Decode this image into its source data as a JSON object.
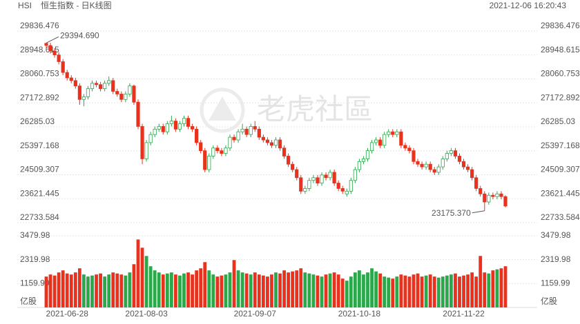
{
  "chart_data": {
    "type": "candlestick",
    "symbol": "HSI",
    "title": "恒生指数 - 日K线图",
    "timestamp": "2021-12-06 16:20:43",
    "watermark": "老虎社區",
    "up_color": "#2aa84a",
    "down_color": "#e8321e",
    "ylim": [
      22733.584,
      29836.476
    ],
    "yticks": [
      22733.584,
      23621.445,
      24509.307,
      25397.168,
      26285.03,
      27172.892,
      28060.753,
      28948.615,
      29836.476
    ],
    "volume_unit": "亿股",
    "volume_ylim": [
      0,
      3479.98
    ],
    "volume_ticks": [
      1159.99,
      2319.98,
      3479.98
    ],
    "annotations": [
      {
        "label": "29394.690",
        "index": 0
      },
      {
        "label": "23175.370",
        "index": 105
      }
    ],
    "categories": [
      null,
      null,
      null,
      null,
      null,
      "2021-06-28",
      null,
      null,
      null,
      null,
      null,
      null,
      null,
      null,
      null,
      null,
      null,
      null,
      null,
      null,
      null,
      null,
      null,
      null,
      "2021-08-03",
      null,
      null,
      null,
      null,
      null,
      null,
      null,
      null,
      null,
      null,
      null,
      null,
      null,
      null,
      null,
      null,
      null,
      null,
      null,
      null,
      null,
      null,
      null,
      null,
      null,
      "2021-09-07",
      null,
      null,
      null,
      null,
      null,
      null,
      null,
      null,
      null,
      null,
      null,
      null,
      null,
      null,
      null,
      null,
      null,
      null,
      null,
      null,
      null,
      null,
      null,
      null,
      "2021-10-18",
      null,
      null,
      null,
      null,
      null,
      null,
      null,
      null,
      null,
      null,
      null,
      null,
      null,
      null,
      null,
      null,
      null,
      null,
      null,
      null,
      null,
      null,
      null,
      null,
      "2021-11-22",
      null,
      null,
      null,
      null,
      null,
      null,
      null,
      null,
      null,
      null
    ],
    "open": [
      29380,
      29300,
      29100,
      28950,
      28700,
      28300,
      28100,
      28000,
      27800,
      27300,
      27400,
      27700,
      27900,
      27850,
      27700,
      27900,
      28000,
      27600,
      27500,
      27300,
      27500,
      27800,
      27200,
      26300,
      25100,
      25700,
      26000,
      26200,
      26300,
      26100,
      26400,
      26500,
      26200,
      26400,
      26600,
      26300,
      26200,
      25700,
      25400,
      24700,
      25200,
      25500,
      25400,
      25300,
      25500,
      25900,
      25800,
      26100,
      26200,
      26000,
      26300,
      26200,
      25900,
      25800,
      25700,
      25600,
      25800,
      25500,
      25200,
      24900,
      24700,
      24400,
      23900,
      24000,
      24300,
      24400,
      24200,
      24500,
      24400,
      24600,
      24200,
      24000,
      23800,
      23900,
      24300,
      24700,
      25000,
      25100,
      25400,
      25700,
      25800,
      25600,
      26000,
      26100,
      26000,
      26100,
      25600,
      25500,
      25400,
      25000,
      24900,
      24800,
      24900,
      24700,
      24600,
      24800,
      25100,
      25300,
      25400,
      25200,
      25000,
      24800,
      24700,
      24400,
      24000,
      23800,
      23500,
      23750,
      23700,
      23800,
      23700
    ],
    "high": [
      29394.69,
      29400,
      29200,
      29050,
      28800,
      28400,
      28200,
      28100,
      27900,
      27500,
      27800,
      28000,
      28000,
      27950,
      28000,
      28150,
      28100,
      27700,
      27600,
      27600,
      27900,
      27850,
      27300,
      26400,
      25800,
      26100,
      26300,
      26400,
      26400,
      26500,
      26700,
      26600,
      26500,
      26700,
      26700,
      26400,
      26300,
      25800,
      25500,
      25300,
      25600,
      25600,
      25500,
      25600,
      26000,
      26000,
      26200,
      26400,
      26300,
      26400,
      26500,
      26300,
      26000,
      25900,
      25800,
      25900,
      25900,
      25600,
      25300,
      25000,
      24800,
      24500,
      24100,
      24400,
      24500,
      24500,
      24600,
      24600,
      24700,
      24700,
      24300,
      24100,
      24000,
      24400,
      24800,
      25100,
      25200,
      25500,
      25800,
      25900,
      25900,
      26100,
      26200,
      26200,
      26200,
      26200,
      25700,
      25600,
      25500,
      25100,
      25000,
      25000,
      25000,
      24800,
      24900,
      25200,
      25400,
      25500,
      25500,
      25300,
      25100,
      24900,
      24800,
      24500,
      24100,
      23900,
      23850,
      23850,
      23900,
      23900,
      23750
    ],
    "low": [
      29200,
      29000,
      28850,
      28600,
      28200,
      28000,
      27900,
      27700,
      27100,
      27050,
      27300,
      27600,
      27750,
      27600,
      27600,
      27800,
      27500,
      27400,
      27200,
      27200,
      27400,
      27100,
      26200,
      24900,
      25000,
      25600,
      25900,
      26100,
      26000,
      26000,
      26300,
      26100,
      26100,
      26300,
      26200,
      26100,
      25600,
      25300,
      24600,
      24600,
      25100,
      25300,
      25200,
      25200,
      25400,
      25700,
      25700,
      26000,
      25900,
      25900,
      26100,
      25800,
      25700,
      25600,
      25500,
      25500,
      25400,
      25100,
      24800,
      24600,
      24300,
      23800,
      23800,
      23900,
      24200,
      24100,
      24100,
      24300,
      24300,
      24100,
      23900,
      23800,
      23700,
      23800,
      24200,
      24600,
      24900,
      25000,
      25300,
      25600,
      25500,
      25500,
      25900,
      25900,
      25900,
      25500,
      25400,
      25300,
      24900,
      24800,
      24700,
      24700,
      24600,
      24500,
      24500,
      24700,
      25000,
      25200,
      25100,
      24900,
      24700,
      24600,
      24300,
      23900,
      23700,
      23175.37,
      23400,
      23600,
      23600,
      23600,
      23300
    ],
    "close": [
      29300,
      29100,
      28950,
      28700,
      28300,
      28100,
      28000,
      27800,
      27300,
      27400,
      27700,
      27900,
      27850,
      27700,
      27900,
      28000,
      27600,
      27500,
      27300,
      27500,
      27800,
      27200,
      26300,
      25100,
      25700,
      26000,
      26200,
      26300,
      26100,
      26400,
      26500,
      26200,
      26400,
      26600,
      26300,
      26200,
      25700,
      25400,
      24700,
      25200,
      25500,
      25400,
      25300,
      25500,
      25900,
      25800,
      26100,
      26200,
      26000,
      26300,
      26200,
      25900,
      25800,
      25700,
      25600,
      25800,
      25500,
      25200,
      24900,
      24700,
      24400,
      23900,
      24000,
      24300,
      24400,
      24200,
      24500,
      24400,
      24600,
      24200,
      24000,
      23900,
      23900,
      24300,
      24700,
      25000,
      25100,
      25400,
      25700,
      25800,
      25600,
      26000,
      26100,
      26000,
      26100,
      25600,
      25500,
      25400,
      25000,
      24900,
      24800,
      24900,
      24700,
      24600,
      24800,
      25100,
      25300,
      25400,
      25200,
      25000,
      24800,
      24700,
      24400,
      24000,
      23800,
      23500,
      23750,
      23700,
      23800,
      23700,
      23350
    ],
    "volume": [
      1500,
      1600,
      1550,
      1700,
      1800,
      1650,
      1600,
      1700,
      1900,
      1600,
      1500,
      1550,
      1600,
      1650,
      1500,
      1600,
      1700,
      1650,
      1600,
      1550,
      1700,
      2100,
      3300,
      2900,
      2500,
      2000,
      1800,
      1700,
      1600,
      1650,
      1700,
      1600,
      1550,
      1650,
      1700,
      1600,
      1800,
      1900,
      2200,
      1800,
      1600,
      1500,
      1550,
      1600,
      1700,
      2300,
      1800,
      1700,
      1650,
      1600,
      1700,
      1600,
      1550,
      1500,
      1600,
      1700,
      1650,
      1800,
      1700,
      1750,
      1800,
      1900,
      1700,
      1650,
      1600,
      1550,
      1500,
      1600,
      1650,
      1700,
      1600,
      1400,
      1300,
      1500,
      1700,
      1800,
      1600,
      1700,
      1900,
      1750,
      1650,
      1500,
      1450,
      1400,
      1500,
      1600,
      1550,
      1500,
      1600,
      1650,
      1500,
      1550,
      1600,
      1500,
      1450,
      1500,
      1550,
      1600,
      1650,
      1500,
      1550,
      1600,
      1700,
      1500,
      2500,
      1700,
      1650,
      1800,
      1850,
      1900,
      2000
    ]
  }
}
